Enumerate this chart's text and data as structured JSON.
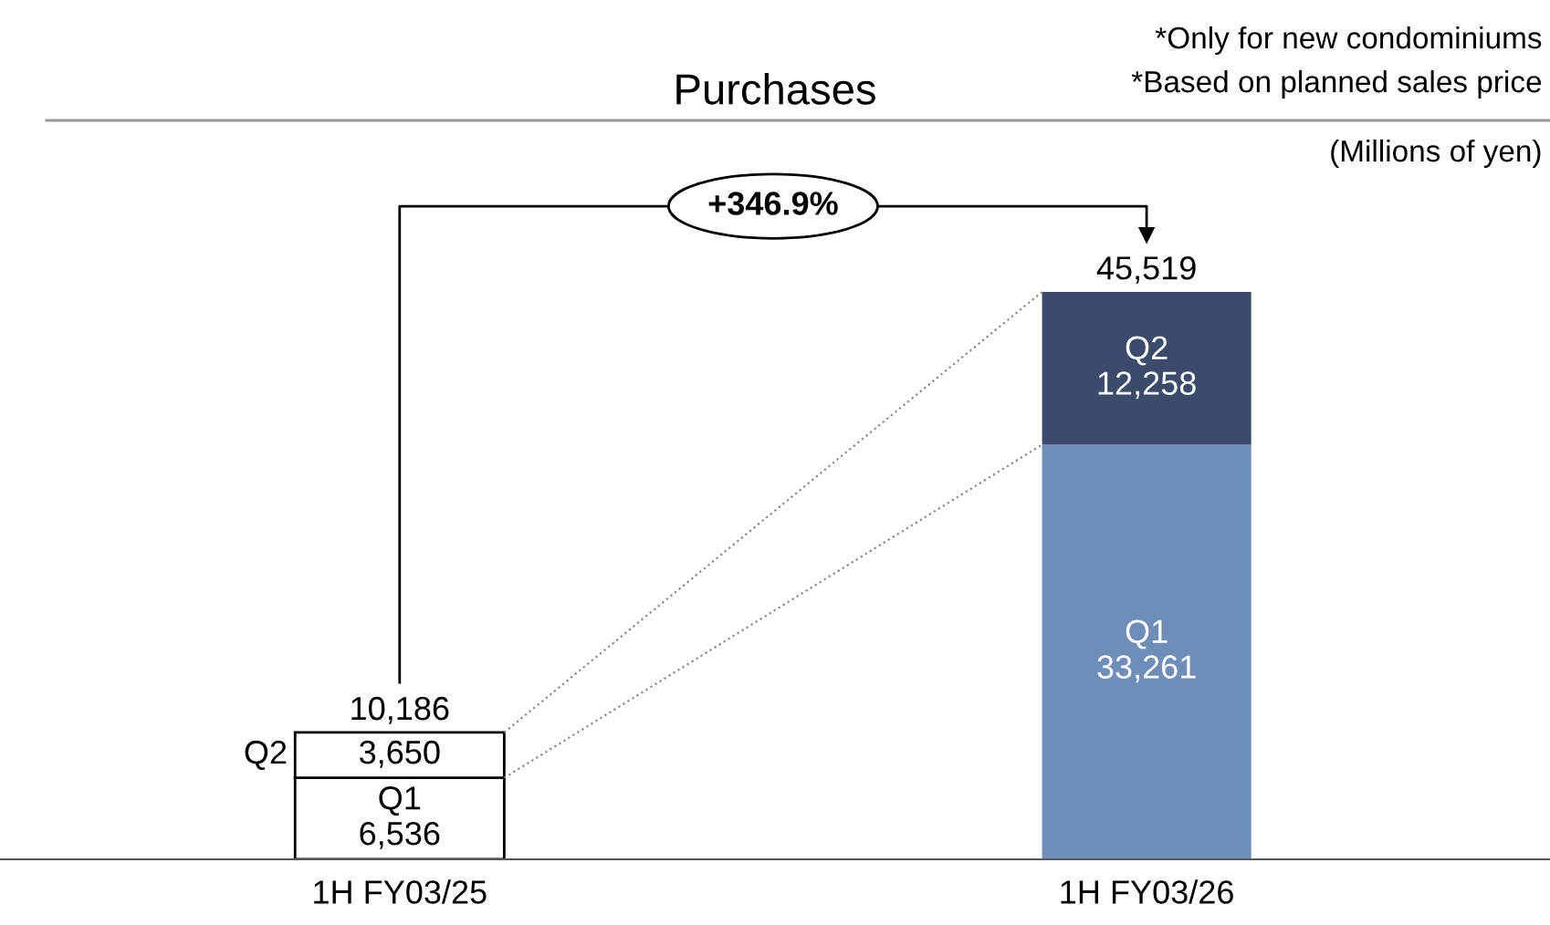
{
  "chart_data": {
    "type": "bar",
    "stacked": true,
    "title": "Purchases",
    "categories": [
      "1H FY03/25",
      "1H FY03/26"
    ],
    "series": [
      {
        "name": "Q1",
        "colors": [
          "#ffffff",
          "#6e8db9"
        ],
        "values": [
          6536,
          33261
        ],
        "value_labels": [
          "6,536",
          "33,261"
        ]
      },
      {
        "name": "Q2",
        "colors": [
          "#ffffff",
          "#3b4b6b"
        ],
        "values": [
          3650,
          12258
        ],
        "value_labels": [
          "3,650",
          "12,258"
        ]
      }
    ],
    "totals": [
      "10,186",
      "45,519"
    ],
    "annotations": [
      "+346.9%",
      "*Only for new condominiums",
      "*Based on planned sales price",
      "(Millions of yen)"
    ],
    "legend": false,
    "grid": false,
    "tick_labels": "x"
  }
}
